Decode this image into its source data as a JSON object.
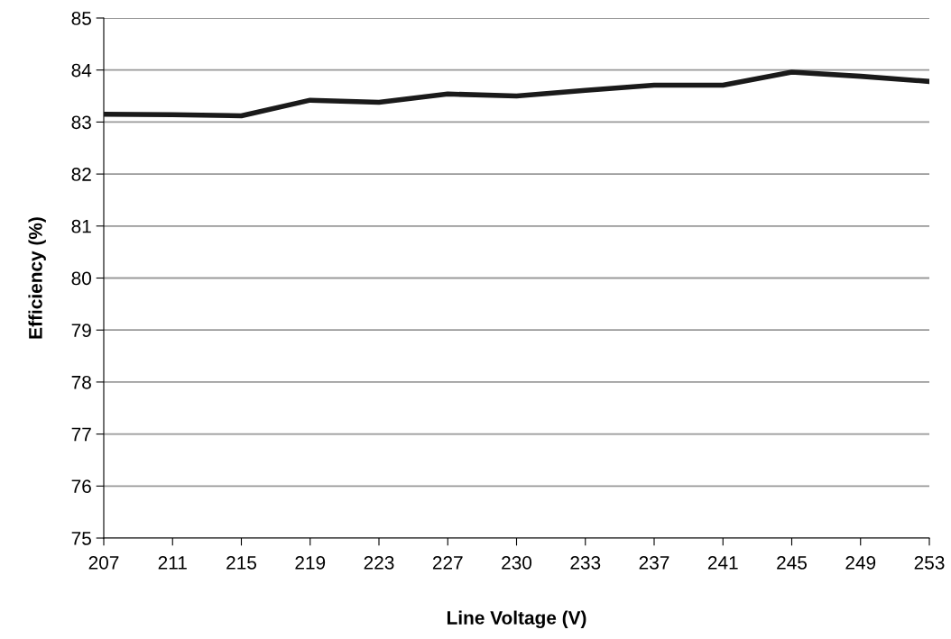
{
  "chart_data": {
    "type": "line",
    "xlabel": "Line Voltage (V)",
    "ylabel": "Efficiency (%)",
    "categories": [
      "207",
      "211",
      "215",
      "219",
      "223",
      "227",
      "230",
      "233",
      "237",
      "241",
      "245",
      "249",
      "253"
    ],
    "series": [
      {
        "color": "#1a1a1a",
        "values": [
          83.15,
          83.14,
          83.12,
          83.42,
          83.38,
          83.54,
          83.5,
          83.61,
          83.71,
          83.71,
          83.96,
          83.88,
          83.78
        ]
      }
    ],
    "ylim": [
      75,
      85
    ],
    "yticks": [
      75,
      76,
      77,
      78,
      79,
      80,
      81,
      82,
      83,
      84,
      85
    ],
    "grid": "y",
    "marker": "none",
    "line_style": "solid",
    "legend": false
  }
}
